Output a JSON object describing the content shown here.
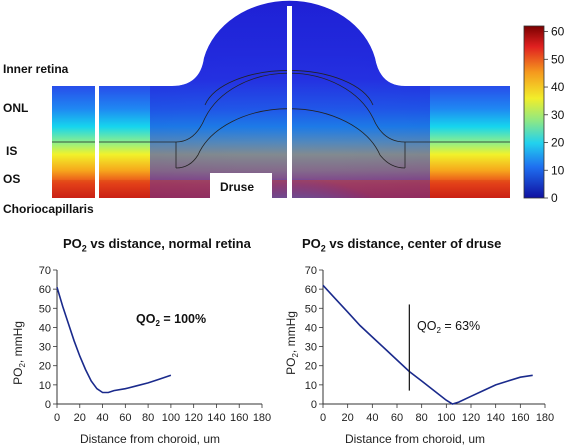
{
  "heatmap": {
    "layer_labels": [
      "Inner retina",
      "ONL",
      "IS",
      "OS",
      "Choriocapillaris"
    ],
    "druse_label": "Druse",
    "colorbar_ticks": [
      "60",
      "50",
      "40",
      "30",
      "20",
      "10",
      "0"
    ],
    "colorbar_range": [
      0,
      62
    ]
  },
  "chart_data": [
    {
      "type": "line",
      "title_main": "PO",
      "title_sub": "2",
      "title_rest": " vs distance, normal retina",
      "xlabel": "Distance from choroid, um",
      "ylabel_main": "PO",
      "ylabel_sub": "2",
      "ylabel_rest": ", mmHg",
      "xlim": [
        0,
        180
      ],
      "ylim": [
        0,
        70
      ],
      "xticks": [
        0,
        20,
        40,
        60,
        80,
        100,
        120,
        140,
        160,
        180
      ],
      "yticks": [
        0,
        10,
        20,
        30,
        40,
        50,
        60,
        70
      ],
      "x": [
        0,
        5,
        10,
        15,
        20,
        25,
        30,
        35,
        40,
        45,
        50,
        60,
        70,
        80,
        90,
        100
      ],
      "y": [
        61,
        51,
        42,
        33,
        25,
        18,
        12,
        8,
        6,
        6,
        7,
        8,
        9.5,
        11,
        13,
        15
      ],
      "annotation_main": "QO",
      "annotation_sub": "2",
      "annotation_rest": " = 100%",
      "color": "#1a2a8c"
    },
    {
      "type": "line",
      "title_main": "PO",
      "title_sub": "2",
      "title_rest": " vs distance, center of druse",
      "xlabel": "Distance from choroid, um",
      "ylabel_main": "PO",
      "ylabel_sub": "2",
      "ylabel_rest": ", mmHg",
      "xlim": [
        0,
        180
      ],
      "ylim": [
        0,
        70
      ],
      "xticks": [
        0,
        20,
        40,
        60,
        80,
        100,
        120,
        140,
        160,
        180
      ],
      "yticks": [
        0,
        10,
        20,
        30,
        40,
        50,
        60,
        70
      ],
      "x": [
        0,
        10,
        20,
        30,
        40,
        50,
        60,
        70,
        80,
        90,
        100,
        105,
        110,
        120,
        130,
        140,
        150,
        160,
        170
      ],
      "y": [
        62,
        55,
        48,
        41,
        35,
        29,
        23,
        17,
        12,
        7,
        2,
        0,
        1,
        4,
        7,
        10,
        12,
        14,
        15
      ],
      "vline_x": 70,
      "vline_range": [
        7,
        52
      ],
      "annotation_main": "QO",
      "annotation_sub": "2",
      "annotation_rest": " = 63%",
      "color": "#1a2a8c"
    }
  ]
}
